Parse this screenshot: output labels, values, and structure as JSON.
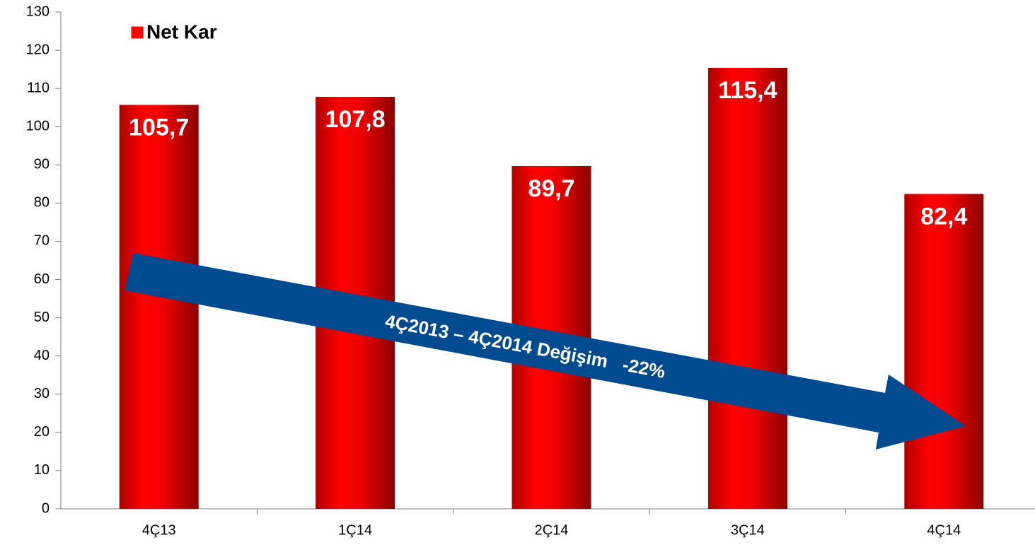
{
  "chart_data": {
    "type": "bar",
    "legend": "Net Kar",
    "categories": [
      "4Ç13",
      "1Ç14",
      "2Ç14",
      "3Ç14",
      "4Ç14"
    ],
    "values": [
      105.7,
      107.8,
      89.7,
      115.4,
      82.4
    ],
    "value_labels": [
      "105,7",
      "107,8",
      "89,7",
      "115,4",
      "82,4"
    ],
    "color": "#ff0000",
    "annotation": "4Ç2013 – 4Ç2014 Değişim   -22%",
    "ylim": [
      0,
      130
    ],
    "yticks": [
      0,
      10,
      20,
      30,
      40,
      50,
      60,
      70,
      80,
      90,
      100,
      110,
      120,
      130
    ],
    "grid": false
  }
}
